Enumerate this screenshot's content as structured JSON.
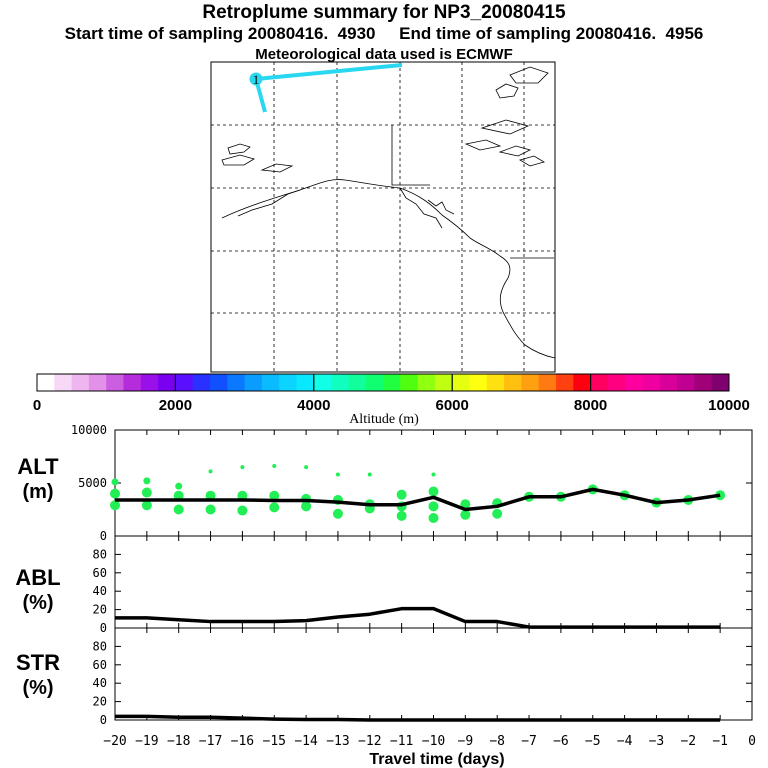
{
  "header": {
    "title": "Retroplume summary for NP3_20080415",
    "sampling": "Start time of sampling 20080416.  4930     End time of sampling 20080416.  4956",
    "met": "Meteorological data used is ECMWF"
  },
  "map": {
    "marker_label": "1"
  },
  "colorbar": {
    "ticks": [
      "0",
      "2000",
      "4000",
      "6000",
      "8000",
      "10000"
    ],
    "label": "Altitude (m)",
    "colors": [
      "#ffffff",
      "#f7d8f7",
      "#efb5ef",
      "#e390e8",
      "#cc5ee0",
      "#b52cdc",
      "#9a10e8",
      "#7a00f0",
      "#5a10ff",
      "#2a30ff",
      "#1050ff",
      "#0a78ff",
      "#0a9cff",
      "#0abcff",
      "#0ad4ff",
      "#0ae8ff",
      "#10ffe6",
      "#10ffc0",
      "#10ff9c",
      "#10ff70",
      "#20ff40",
      "#50ff10",
      "#90ff10",
      "#c0ff10",
      "#e6ff10",
      "#ffff10",
      "#ffe010",
      "#ffc010",
      "#ffa010",
      "#ff7a10",
      "#ff4010",
      "#ff0010",
      "#ff0060",
      "#ff0080",
      "#ff00a0",
      "#f000a0",
      "#d80098",
      "#c00090",
      "#a00078",
      "#800070"
    ]
  },
  "panels": {
    "alt": {
      "label1": "ALT",
      "label2": "(m)"
    },
    "abl": {
      "label1": "ABL",
      "label2": "(%)"
    },
    "str": {
      "label1": "STR",
      "label2": "(%)"
    }
  },
  "chart_data": [
    {
      "type": "line",
      "title": "ALT (m)",
      "ylim": [
        0,
        10000
      ],
      "ytick_labels": [
        "10000",
        "5000",
        "0"
      ],
      "x": [
        -20,
        -19,
        -18,
        -17,
        -16,
        -15,
        -14,
        -13,
        -12,
        -11,
        -10,
        -9,
        -8,
        -7,
        -6,
        -5,
        -4,
        -3,
        -2,
        -1
      ],
      "mean": [
        3400,
        3400,
        3400,
        3400,
        3400,
        3350,
        3350,
        3200,
        2950,
        2950,
        3650,
        2500,
        2800,
        3700,
        3700,
        4400,
        3850,
        3150,
        3400,
        3850
      ],
      "scatter": [
        {
          "x": -20,
          "y": 5100
        },
        {
          "x": -20,
          "y": 4000
        },
        {
          "x": -20,
          "y": 2900
        },
        {
          "x": -19,
          "y": 5200
        },
        {
          "x": -19,
          "y": 4100
        },
        {
          "x": -19,
          "y": 2900
        },
        {
          "x": -18,
          "y": 4700
        },
        {
          "x": -18,
          "y": 3800
        },
        {
          "x": -18,
          "y": 2500
        },
        {
          "x": -17,
          "y": 6100
        },
        {
          "x": -17,
          "y": 3800
        },
        {
          "x": -17,
          "y": 2500
        },
        {
          "x": -16,
          "y": 6500
        },
        {
          "x": -16,
          "y": 3800
        },
        {
          "x": -16,
          "y": 2400
        },
        {
          "x": -15,
          "y": 6600
        },
        {
          "x": -15,
          "y": 3800
        },
        {
          "x": -15,
          "y": 2700
        },
        {
          "x": -14,
          "y": 6500
        },
        {
          "x": -14,
          "y": 3500
        },
        {
          "x": -14,
          "y": 2800
        },
        {
          "x": -13,
          "y": 5800
        },
        {
          "x": -13,
          "y": 3400
        },
        {
          "x": -13,
          "y": 2100
        },
        {
          "x": -12,
          "y": 5800
        },
        {
          "x": -12,
          "y": 3000
        },
        {
          "x": -12,
          "y": 2600
        },
        {
          "x": -11,
          "y": 3900
        },
        {
          "x": -11,
          "y": 2800
        },
        {
          "x": -11,
          "y": 1900
        },
        {
          "x": -10,
          "y": 5800
        },
        {
          "x": -10,
          "y": 4200
        },
        {
          "x": -10,
          "y": 2800
        },
        {
          "x": -10,
          "y": 1700
        },
        {
          "x": -9,
          "y": 3000
        },
        {
          "x": -9,
          "y": 2000
        },
        {
          "x": -8,
          "y": 3100
        },
        {
          "x": -8,
          "y": 2100
        },
        {
          "x": -7,
          "y": 3700
        },
        {
          "x": -6,
          "y": 3700
        },
        {
          "x": -5,
          "y": 4400
        },
        {
          "x": -4,
          "y": 3850
        },
        {
          "x": -3,
          "y": 3150
        },
        {
          "x": -2,
          "y": 3400
        },
        {
          "x": -1,
          "y": 3850
        }
      ],
      "point_color": "#22ee55"
    },
    {
      "type": "line",
      "title": "ABL (%)",
      "ylim": [
        0,
        100
      ],
      "ytick_labels": [
        "80",
        "60",
        "40",
        "20",
        "0"
      ],
      "x": [
        -20,
        -19,
        -18,
        -17,
        -16,
        -15,
        -14,
        -13,
        -12,
        -11,
        -10,
        -9,
        -8,
        -7,
        -6,
        -5,
        -4,
        -3,
        -2,
        -1
      ],
      "values": [
        11,
        11,
        9,
        7,
        7,
        7,
        8,
        12,
        15,
        21,
        21,
        7,
        7,
        1,
        1,
        1,
        1,
        1,
        1,
        1
      ]
    },
    {
      "type": "line",
      "title": "STR (%)",
      "ylim": [
        0,
        100
      ],
      "ytick_labels": [
        "80",
        "60",
        "40",
        "20",
        "0"
      ],
      "x": [
        -20,
        -19,
        -18,
        -17,
        -16,
        -15,
        -14,
        -13,
        -12,
        -11,
        -10,
        -9,
        -8,
        -7,
        -6,
        -5,
        -4,
        -3,
        -2,
        -1
      ],
      "values": [
        4,
        4,
        3,
        3,
        2,
        1,
        0.5,
        0.5,
        0,
        0,
        0,
        0,
        0,
        0,
        0,
        0,
        0,
        0,
        0,
        0
      ]
    }
  ],
  "xaxis": {
    "label": "Travel time (days)",
    "tick_labels": [
      "−20",
      "−19",
      "−18",
      "−17",
      "−16",
      "−15",
      "−14",
      "−13",
      "−12",
      "−11",
      "−10",
      "−9",
      "−8",
      "−7",
      "−6",
      "−5",
      "−4",
      "−3",
      "−2",
      "−1",
      "0"
    ]
  }
}
